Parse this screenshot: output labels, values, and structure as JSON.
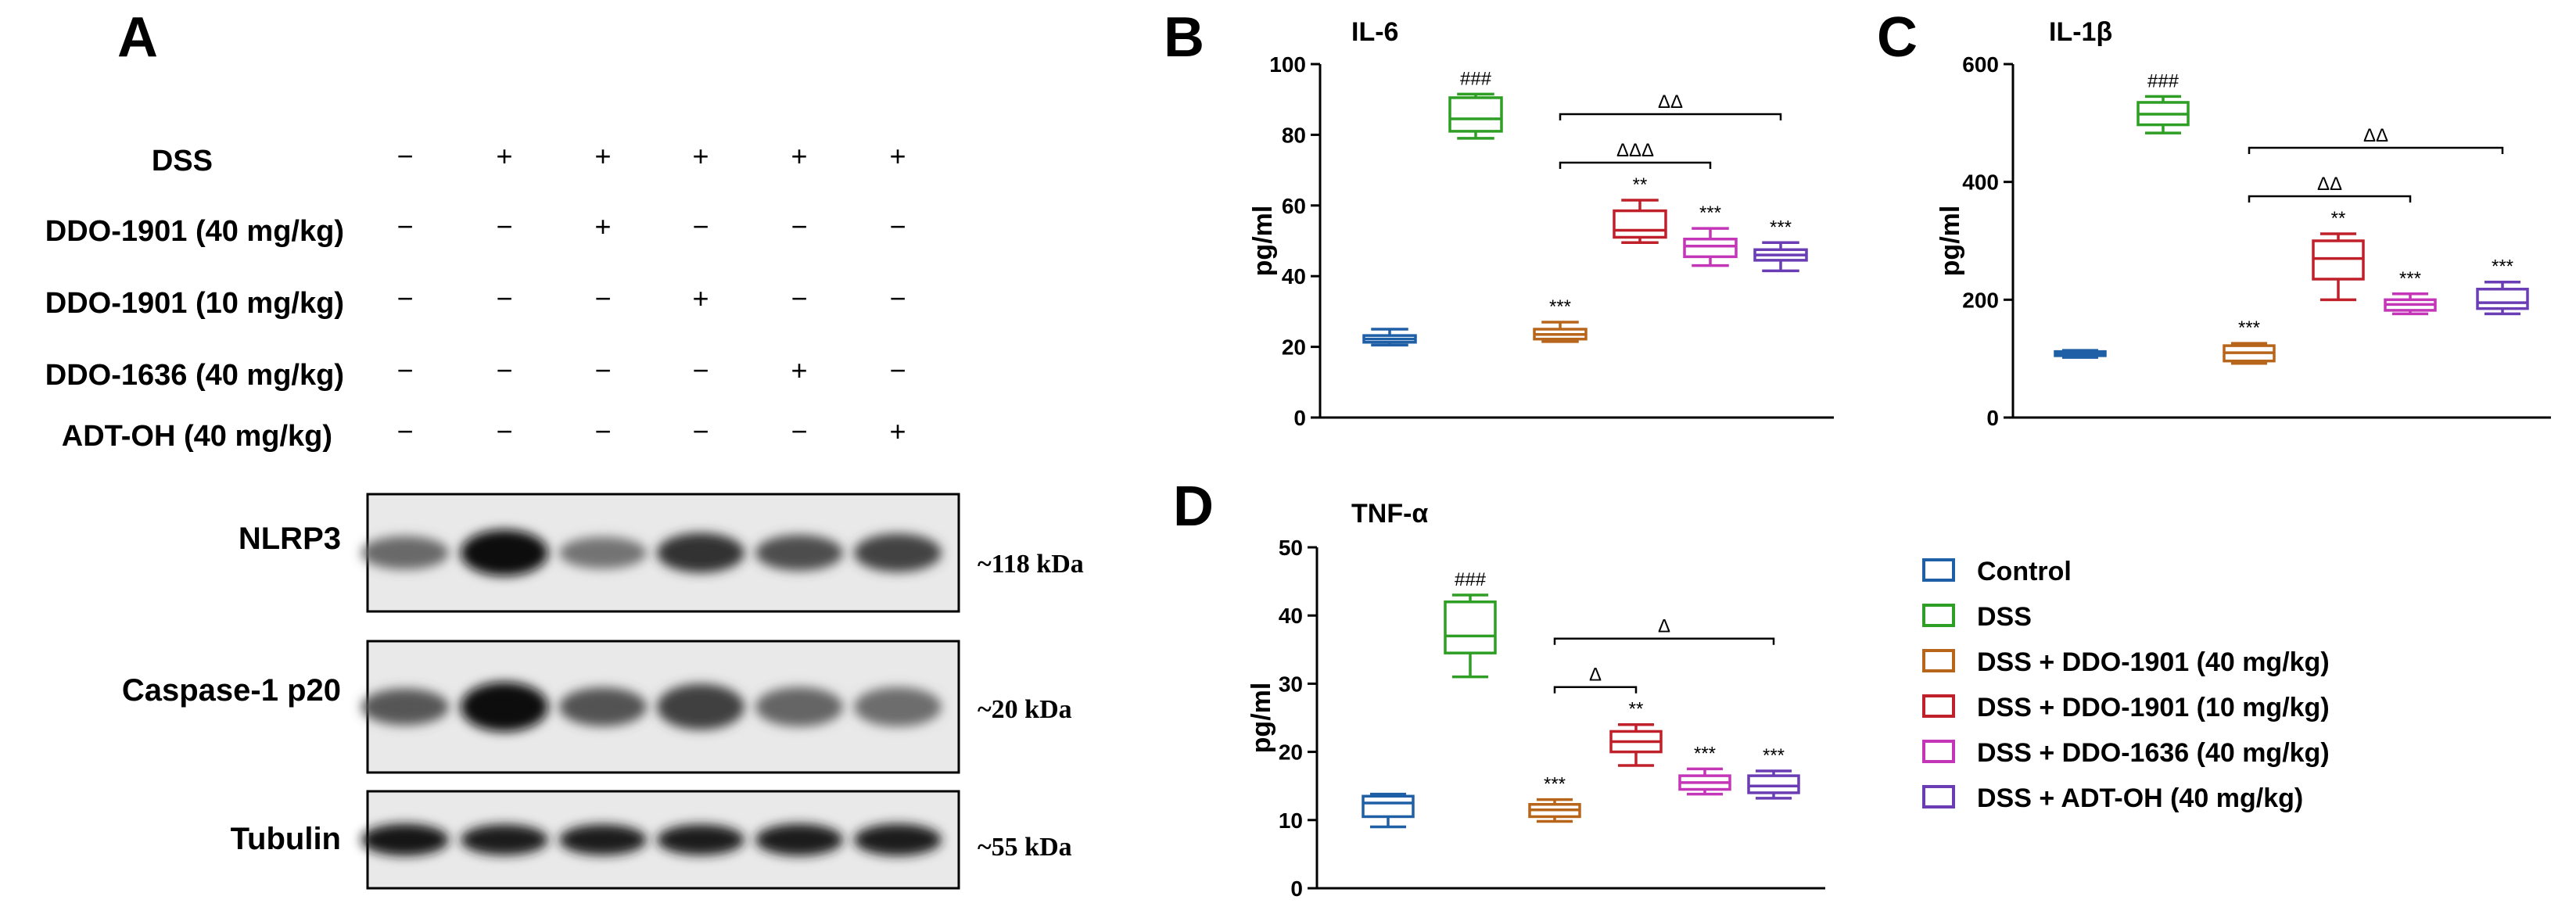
{
  "panel_A": {
    "letter": "A",
    "treatments": [
      {
        "label": "DSS",
        "signs": [
          "−",
          "+",
          "+",
          "+",
          "+",
          "+"
        ]
      },
      {
        "label": "DDO-1901 (40 mg/kg)",
        "signs": [
          "−",
          "−",
          "+",
          "−",
          "−",
          "−"
        ]
      },
      {
        "label": "DDO-1901 (10 mg/kg)",
        "signs": [
          "−",
          "−",
          "−",
          "+",
          "−",
          "−"
        ]
      },
      {
        "label": "DDO-1636 (40 mg/kg)",
        "signs": [
          "−",
          "−",
          "−",
          "−",
          "+",
          "−"
        ]
      },
      {
        "label": "ADT-OH (40 mg/kg)",
        "signs": [
          "−",
          "−",
          "−",
          "−",
          "−",
          "+"
        ]
      }
    ],
    "blots": [
      {
        "label": "NLRP3",
        "size": "~118 kDa",
        "intensity": [
          0.5,
          1.0,
          0.45,
          0.8,
          0.65,
          0.7
        ],
        "band_height": [
          0.42,
          0.62,
          0.4,
          0.52,
          0.46,
          0.5
        ]
      },
      {
        "label": "Caspase-1 p20",
        "size": "~20 kDa",
        "intensity": [
          0.6,
          1.0,
          0.62,
          0.72,
          0.52,
          0.48
        ],
        "band_height": [
          0.42,
          0.6,
          0.45,
          0.55,
          0.46,
          0.46
        ]
      },
      {
        "label": "Tubulin",
        "size": "~55 kDa",
        "intensity": [
          0.92,
          0.9,
          0.9,
          0.9,
          0.9,
          0.9
        ],
        "band_height": [
          0.48,
          0.46,
          0.46,
          0.46,
          0.48,
          0.48
        ]
      }
    ]
  },
  "chart_data": [
    {
      "letter": "B",
      "type": "box",
      "title": "IL-6",
      "ylabel": "pg/ml",
      "ylim": [
        0,
        100
      ],
      "yticks": [
        0,
        20,
        40,
        60,
        80,
        100
      ],
      "tick_labels": [
        "0",
        "20",
        "40",
        "60",
        "80",
        "100"
      ],
      "groups": [
        {
          "whisker_low": 20.5,
          "q1": 21.3,
          "median": 22.2,
          "q3": 23.2,
          "whisker_high": 25,
          "annotation": ""
        },
        {
          "whisker_low": 79,
          "q1": 81,
          "median": 84.5,
          "q3": 90.5,
          "whisker_high": 91.5,
          "annotation": "###"
        },
        {
          "whisker_low": 21.5,
          "q1": 22.2,
          "median": 23.5,
          "q3": 25,
          "whisker_high": 27,
          "annotation": "***"
        },
        {
          "whisker_low": 49.5,
          "q1": 51,
          "median": 53,
          "q3": 58.5,
          "whisker_high": 61.5,
          "annotation": "**"
        },
        {
          "whisker_low": 43,
          "q1": 45.5,
          "median": 48.5,
          "q3": 50.5,
          "whisker_high": 53.5,
          "annotation": "***"
        },
        {
          "whisker_low": 41.5,
          "q1": 44.5,
          "median": 46,
          "q3": 47.5,
          "whisker_high": 49.5,
          "annotation": "***"
        }
      ],
      "brackets": [
        {
          "from": 2,
          "to": 4,
          "label": "ΔΔΔ",
          "level": 1
        },
        {
          "from": 2,
          "to": 5,
          "label": "ΔΔ",
          "level": 2
        }
      ]
    },
    {
      "letter": "C",
      "type": "box",
      "title": "IL-1β",
      "ylabel": "pg/ml",
      "ylim": [
        0,
        600
      ],
      "yticks": [
        0,
        200,
        400,
        600
      ],
      "tick_labels": [
        "0",
        "200",
        "400",
        "600"
      ],
      "groups": [
        {
          "whisker_low": 102,
          "q1": 105,
          "median": 108,
          "q3": 112,
          "whisker_high": 114,
          "annotation": ""
        },
        {
          "whisker_low": 483,
          "q1": 497,
          "median": 515,
          "q3": 535,
          "whisker_high": 545,
          "annotation": "###"
        },
        {
          "whisker_low": 92,
          "q1": 96,
          "median": 110,
          "q3": 122,
          "whisker_high": 126,
          "annotation": "***"
        },
        {
          "whisker_low": 200,
          "q1": 235,
          "median": 270,
          "q3": 300,
          "whisker_high": 312,
          "annotation": "**"
        },
        {
          "whisker_low": 176,
          "q1": 182,
          "median": 192,
          "q3": 200,
          "whisker_high": 210,
          "annotation": "***"
        },
        {
          "whisker_low": 176,
          "q1": 185,
          "median": 195,
          "q3": 218,
          "whisker_high": 230,
          "annotation": "***"
        }
      ],
      "brackets": [
        {
          "from": 2,
          "to": 4,
          "label": "ΔΔ",
          "level": 1
        },
        {
          "from": 2,
          "to": 5,
          "label": "ΔΔ",
          "level": 2
        }
      ]
    },
    {
      "letter": "D",
      "type": "box",
      "title": "TNF-α",
      "ylabel": "pg/ml",
      "ylim": [
        0,
        50
      ],
      "yticks": [
        0,
        10,
        20,
        30,
        40,
        50
      ],
      "tick_labels": [
        "0",
        "10",
        "20",
        "30",
        "40",
        "50"
      ],
      "groups": [
        {
          "whisker_low": 9,
          "q1": 10.5,
          "median": 12.5,
          "q3": 13.5,
          "whisker_high": 13.8,
          "annotation": ""
        },
        {
          "whisker_low": 31,
          "q1": 34.5,
          "median": 37,
          "q3": 42,
          "whisker_high": 43,
          "annotation": "###"
        },
        {
          "whisker_low": 9.8,
          "q1": 10.5,
          "median": 11.5,
          "q3": 12.3,
          "whisker_high": 13,
          "annotation": "***"
        },
        {
          "whisker_low": 18,
          "q1": 20,
          "median": 21.5,
          "q3": 23,
          "whisker_high": 24,
          "annotation": "**"
        },
        {
          "whisker_low": 13.8,
          "q1": 14.5,
          "median": 15.5,
          "q3": 16.5,
          "whisker_high": 17.5,
          "annotation": "***"
        },
        {
          "whisker_low": 13.2,
          "q1": 14,
          "median": 15,
          "q3": 16.5,
          "whisker_high": 17.2,
          "annotation": "***"
        }
      ],
      "brackets": [
        {
          "from": 2,
          "to": 3,
          "label": "Δ",
          "level": 1
        },
        {
          "from": 2,
          "to": 5,
          "label": "Δ",
          "level": 2
        }
      ]
    }
  ],
  "legend": [
    {
      "label": "Control",
      "color": "#1f5fa6"
    },
    {
      "label": "DSS",
      "color": "#2e9e24"
    },
    {
      "label": "DSS + DDO-1901 (40 mg/kg)",
      "color": "#b8651c"
    },
    {
      "label": "DSS + DDO-1901 (10 mg/kg)",
      "color": "#c0202a"
    },
    {
      "label": "DSS + DDO-1636 (40 mg/kg)",
      "color": "#c436b8"
    },
    {
      "label": "DSS + ADT-OH (40 mg/kg)",
      "color": "#6a3db4"
    }
  ]
}
